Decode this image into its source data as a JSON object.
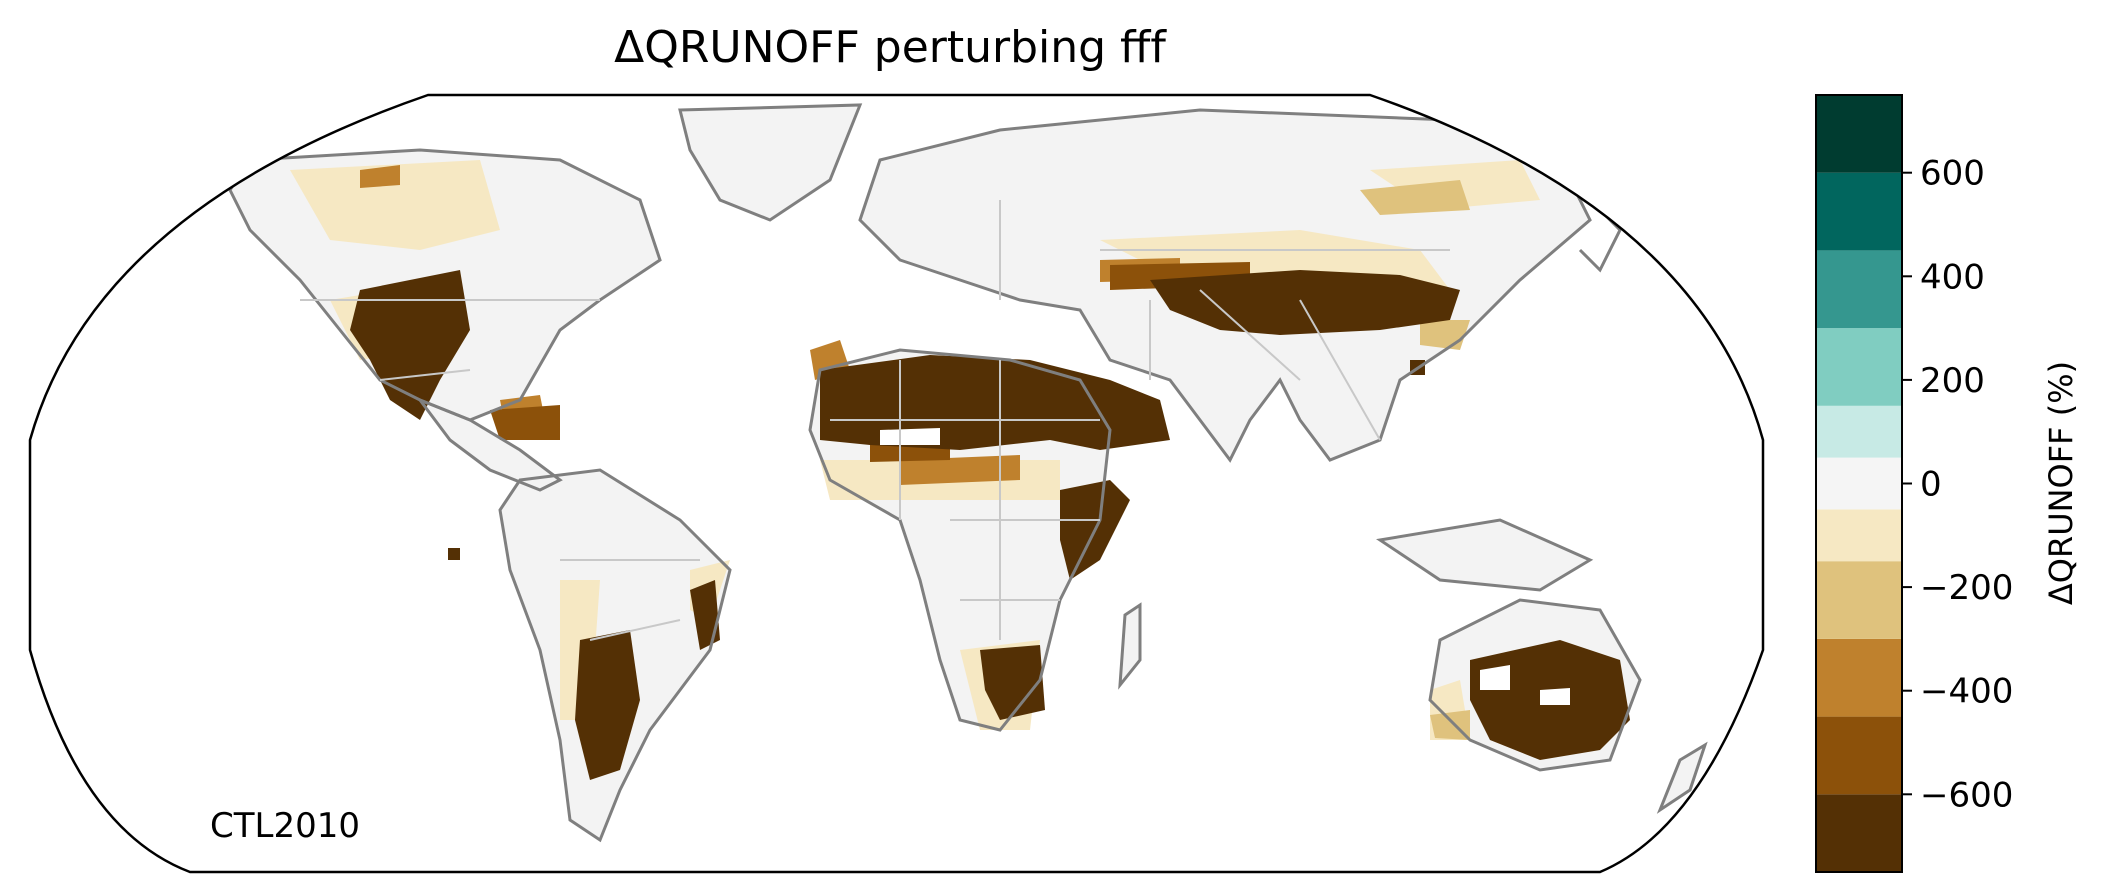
{
  "map": {
    "title": "ΔQRUNOFF perturbing fff",
    "annotation": "CTL2010",
    "projection": "robinson"
  },
  "colorbar": {
    "label": "ΔQRUNOFF (%)",
    "range": [
      -750,
      750
    ],
    "bounds": [
      -750,
      -600,
      -450,
      -300,
      -150,
      -50,
      50,
      150,
      300,
      450,
      600,
      750
    ],
    "colors": [
      "#543005",
      "#8c510a",
      "#bf812d",
      "#dfc27d",
      "#f6e8c3",
      "#f5f5f5",
      "#c7eae5",
      "#80cdc1",
      "#35978f",
      "#01665e",
      "#003c30"
    ],
    "ticks": [
      {
        "value": -600,
        "label": "−600"
      },
      {
        "value": -400,
        "label": "−400"
      },
      {
        "value": -200,
        "label": "−200"
      },
      {
        "value": 0,
        "label": "0"
      },
      {
        "value": 200,
        "label": "200"
      },
      {
        "value": 400,
        "label": "400"
      },
      {
        "value": 600,
        "label": "600"
      }
    ]
  }
}
